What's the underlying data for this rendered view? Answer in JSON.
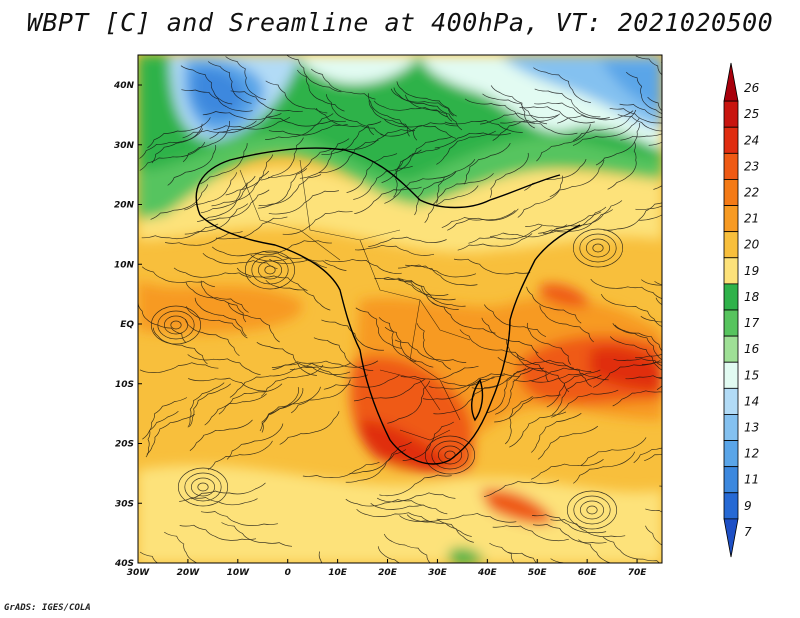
{
  "title": "WBPT [C] and Sreamline at 400hPa, VT: 2021020500",
  "credit": "GrADS: IGES/COLA",
  "map": {
    "lon_ticks": [
      "30W",
      "20W",
      "10W",
      "0",
      "10E",
      "20E",
      "30E",
      "40E",
      "50E",
      "60E",
      "70E"
    ],
    "lat_ticks": [
      "40N",
      "30N",
      "20N",
      "10N",
      "EQ",
      "10S",
      "20S",
      "30S",
      "40S"
    ]
  },
  "colorbar": {
    "levels": [
      {
        "label": "26",
        "color": "#a8000c"
      },
      {
        "label": "25",
        "color": "#c8150f"
      },
      {
        "label": "24",
        "color": "#e02d10"
      },
      {
        "label": "23",
        "color": "#ef5a14"
      },
      {
        "label": "22",
        "color": "#f47a16"
      },
      {
        "label": "21",
        "color": "#f79a22"
      },
      {
        "label": "20",
        "color": "#f8bf3c"
      },
      {
        "label": "19",
        "color": "#fde27a"
      },
      {
        "label": "18",
        "color": "#2fb24a"
      },
      {
        "label": "17",
        "color": "#57c45e"
      },
      {
        "label": "16",
        "color": "#9fe096"
      },
      {
        "label": "15",
        "color": "#e2fbf2"
      },
      {
        "label": "14",
        "color": "#b2dbf6"
      },
      {
        "label": "13",
        "color": "#84c1f0"
      },
      {
        "label": "12",
        "color": "#5aa5e8"
      },
      {
        "label": "11",
        "color": "#3c88de"
      },
      {
        "label": "9",
        "color": "#2669d4"
      },
      {
        "label": "7",
        "color": "#1d4fc5"
      }
    ]
  }
}
